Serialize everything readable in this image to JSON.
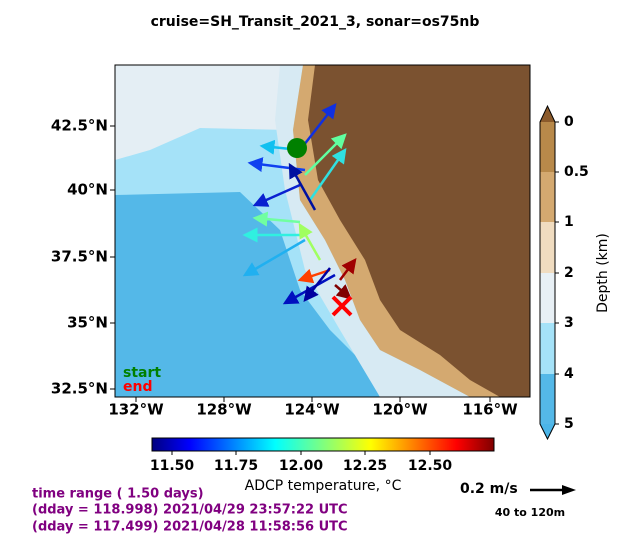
{
  "title": "cruise=SH_Transit_2021_3,   sonar=os75nb",
  "map": {
    "lat_ticks": [
      "42.5°N",
      "40°N",
      "37.5°N",
      "35°N",
      "32.5°N"
    ],
    "lon_ticks": [
      "132°W",
      "128°W",
      "124°W",
      "120°W",
      "116°W"
    ],
    "start_label": "start",
    "end_label": "end"
  },
  "depth_colorbar": {
    "label": "Depth (km)",
    "ticks": [
      "0",
      "0.5",
      "1",
      "2",
      "3",
      "4",
      "5"
    ]
  },
  "temperature_colorbar": {
    "label": "ADCP temperature, °C",
    "ticks": [
      "11.50",
      "11.75",
      "12.00",
      "12.25",
      "12.50"
    ]
  },
  "annotations": {
    "time_range": "time range ( 1.50 days)",
    "dday_end": "(dday = 118.998) 2021/04/29 23:57:22 UTC",
    "dday_start": "(dday = 117.499) 2021/04/28 11:58:56 UTC",
    "scale_speed": "0.2 m/s",
    "depth_range": "40 to 120m"
  }
}
